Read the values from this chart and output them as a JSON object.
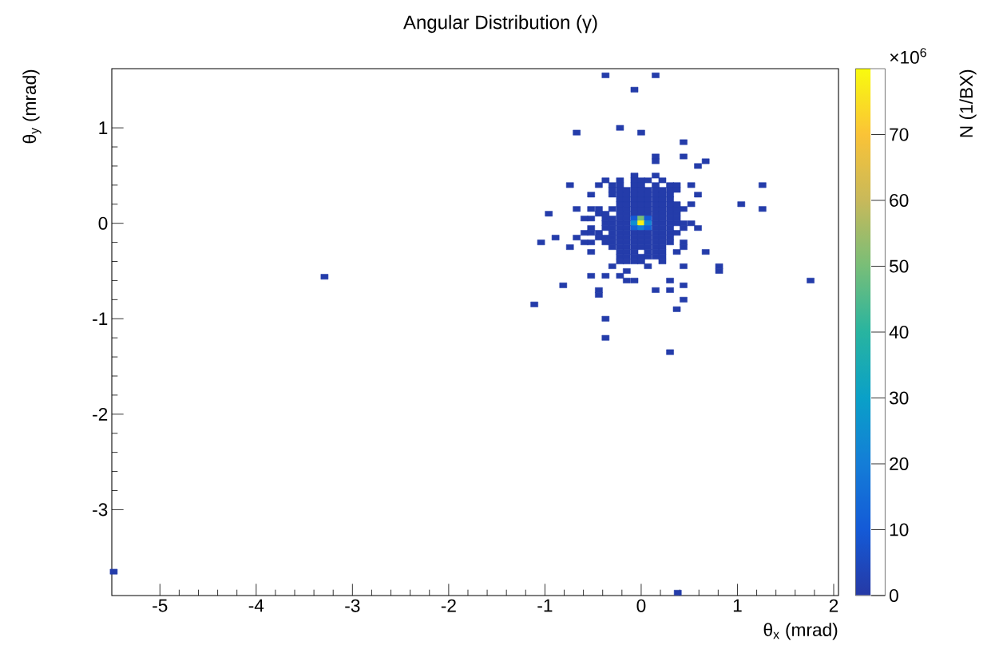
{
  "chart_data": {
    "type": "scatter",
    "title": "Angular Distribution (γ)",
    "xlabel": "θ$_{x}$ (mrad)",
    "ylabel": "θ$_{y}$ (mrad)",
    "clabel": "N (1/BX)",
    "annotations": [
      "×10$^{6}$"
    ],
    "marker": "square",
    "xlim": [
      -5.5,
      2.05
    ],
    "ylim": [
      -3.9,
      1.62
    ],
    "xticks": [
      -5,
      -4,
      -3,
      -2,
      -1,
      0,
      1,
      2
    ],
    "yticks": [
      -3,
      -2,
      -1,
      0,
      1
    ],
    "clim": [
      0,
      80
    ],
    "cticks": [
      0,
      10,
      20,
      30,
      40,
      50,
      60,
      70
    ],
    "x": [
      -0.37,
      0.15,
      -0.07,
      -0.22,
      -0.67,
      0,
      0.44,
      0.15,
      0.44,
      0.15,
      0.67,
      0.59,
      -0.07,
      0.15,
      -0.37,
      -0.22,
      -0.07,
      0,
      0.07,
      0.22,
      -0.74,
      -0.44,
      -0.3,
      -0.22,
      -0.07,
      0,
      0.15,
      0.3,
      0.37,
      0.52,
      1.26,
      -0.3,
      -0.22,
      -0.15,
      -0.07,
      0,
      0.07,
      0.15,
      0.22,
      0.3,
      0.37,
      -0.52,
      -0.3,
      -0.22,
      -0.15,
      -0.07,
      0,
      0.07,
      0.15,
      0.22,
      0.3,
      0.59,
      -0.22,
      -0.15,
      -0.07,
      0,
      0.07,
      0.15,
      0.22,
      0.3,
      -0.22,
      -0.15,
      -0.07,
      0,
      0.07,
      0.15,
      0.22,
      0.3,
      0.37,
      0.52,
      1.04,
      -0.67,
      -0.52,
      -0.44,
      -0.3,
      -0.22,
      -0.15,
      -0.07,
      0,
      0.07,
      0.15,
      0.22,
      0.3,
      0.37,
      0.44,
      1.26,
      -0.96,
      -0.44,
      -0.37,
      -0.22,
      -0.15,
      -0.07,
      0,
      0.07,
      0.15,
      0.22,
      0.3,
      0.37,
      -0.59,
      -0.52,
      -0.37,
      -0.3,
      -0.22,
      -0.15,
      -0.07,
      0,
      0.07,
      0.15,
      0.22,
      0.3,
      0.37,
      -0.37,
      -0.3,
      -0.22,
      -0.15,
      -0.07,
      0,
      0.07,
      0.15,
      0.22,
      0.3,
      0.37,
      0.44,
      0.52,
      -0.52,
      -0.37,
      -0.3,
      -0.22,
      -0.15,
      -0.07,
      0,
      0.07,
      0.15,
      0.22,
      0.3,
      0.44,
      0.59,
      -0.59,
      -0.52,
      -0.44,
      -0.3,
      -0.22,
      -0.15,
      -0.07,
      0,
      0.07,
      0.15,
      0.22,
      0.3,
      0.37,
      -0.89,
      -0.67,
      -0.44,
      -0.37,
      -0.3,
      -0.22,
      -0.15,
      -0.07,
      0,
      0.07,
      0.15,
      0.22,
      0.3,
      -1.04,
      -0.59,
      -0.52,
      -0.37,
      -0.3,
      -0.22,
      -0.15,
      -0.07,
      0,
      0.07,
      0.15,
      0.22,
      0.3,
      0.44,
      -0.74,
      -0.3,
      -0.22,
      -0.15,
      -0.07,
      0,
      0.07,
      0.15,
      0.22,
      0.44,
      -0.52,
      -0.22,
      -0.15,
      -0.07,
      0.07,
      0.15,
      0.22,
      0.37,
      0.67,
      -0.22,
      -0.15,
      -0.07,
      0,
      0.07,
      0.15,
      0.22,
      -0.22,
      -0.15,
      -0.07,
      0,
      0.22,
      -0.3,
      0.07,
      0.44,
      0.81,
      -0.15,
      0.81,
      -0.52,
      -0.37,
      -0.22,
      -0.15,
      -0.07,
      0.3,
      -0.81,
      0.44,
      -0.44,
      0.15,
      0.3,
      -0.44,
      0.44,
      -1.11,
      0.37,
      -0.37,
      -0.37,
      0.3,
      -3.29,
      1.76,
      -5.48,
      0.38
    ],
    "values": [
      1.55,
      1.55,
      1.4,
      1.0,
      0.95,
      0.95,
      0.85,
      0.7,
      0.7,
      0.65,
      0.65,
      0.6,
      0.5,
      0.5,
      0.45,
      0.45,
      0.45,
      0.45,
      0.45,
      0.45,
      0.4,
      0.4,
      0.4,
      0.4,
      0.4,
      0.4,
      0.4,
      0.4,
      0.4,
      0.4,
      0.4,
      0.35,
      0.35,
      0.35,
      0.35,
      0.35,
      0.35,
      0.35,
      0.35,
      0.35,
      0.35,
      0.3,
      0.3,
      0.3,
      0.3,
      0.3,
      0.3,
      0.3,
      0.3,
      0.3,
      0.3,
      0.3,
      0.25,
      0.25,
      0.25,
      0.25,
      0.25,
      0.25,
      0.25,
      0.25,
      0.2,
      0.2,
      0.2,
      0.2,
      0.2,
      0.2,
      0.2,
      0.2,
      0.2,
      0.2,
      0.2,
      0.15,
      0.15,
      0.15,
      0.15,
      0.15,
      0.15,
      0.15,
      0.15,
      0.15,
      0.15,
      0.15,
      0.15,
      0.15,
      0.15,
      0.15,
      0.1,
      0.1,
      0.1,
      0.1,
      0.1,
      0.1,
      0.1,
      0.1,
      0.1,
      0.1,
      0.1,
      0.1,
      0.05,
      0.05,
      0.05,
      0.05,
      0.05,
      0.05,
      0.05,
      0.05,
      0.05,
      0.05,
      0.05,
      0.05,
      0.05,
      0,
      0,
      0,
      0,
      0,
      0,
      0,
      0,
      0,
      0,
      0,
      0,
      0,
      -0.05,
      -0.05,
      -0.05,
      -0.05,
      -0.05,
      -0.05,
      -0.05,
      -0.05,
      -0.05,
      -0.05,
      -0.05,
      -0.05,
      -0.05,
      -0.1,
      -0.1,
      -0.1,
      -0.1,
      -0.1,
      -0.1,
      -0.1,
      -0.1,
      -0.1,
      -0.1,
      -0.1,
      -0.1,
      -0.1,
      -0.15,
      -0.15,
      -0.15,
      -0.15,
      -0.15,
      -0.15,
      -0.15,
      -0.15,
      -0.15,
      -0.15,
      -0.15,
      -0.15,
      -0.15,
      -0.2,
      -0.2,
      -0.2,
      -0.2,
      -0.2,
      -0.2,
      -0.2,
      -0.2,
      -0.2,
      -0.2,
      -0.2,
      -0.2,
      -0.2,
      -0.2,
      -0.25,
      -0.25,
      -0.25,
      -0.25,
      -0.25,
      -0.25,
      -0.25,
      -0.25,
      -0.25,
      -0.25,
      -0.3,
      -0.3,
      -0.3,
      -0.3,
      -0.3,
      -0.3,
      -0.3,
      -0.3,
      -0.3,
      -0.35,
      -0.35,
      -0.35,
      -0.35,
      -0.35,
      -0.35,
      -0.35,
      -0.4,
      -0.4,
      -0.4,
      -0.4,
      -0.4,
      -0.45,
      -0.45,
      -0.45,
      -0.45,
      -0.5,
      -0.5,
      -0.55,
      -0.55,
      -0.55,
      -0.6,
      -0.6,
      -0.6,
      -0.65,
      -0.65,
      -0.7,
      -0.7,
      -0.7,
      -0.75,
      -0.8,
      -0.85,
      -0.9,
      -1.0,
      -1.2,
      -1.35,
      -0.56,
      -0.6,
      -3.65,
      -3.87
    ],
    "cvalues": [
      1,
      1,
      1,
      1,
      1,
      1,
      1,
      1,
      1,
      1,
      1,
      1,
      1,
      1,
      1,
      1,
      1,
      1,
      1,
      1,
      1,
      1,
      1,
      1,
      1,
      1,
      1,
      1,
      1,
      1,
      1,
      1,
      1,
      1,
      1,
      1,
      1,
      1,
      1,
      1,
      1,
      1,
      1,
      1,
      1,
      1,
      1,
      1,
      1,
      1,
      1,
      1,
      1,
      1,
      1,
      1,
      1,
      1,
      1,
      1,
      1,
      1,
      1,
      1,
      1,
      1,
      1,
      1,
      1,
      1,
      1,
      1,
      1,
      1,
      1,
      1,
      1,
      1,
      1,
      1,
      1,
      1,
      1,
      1,
      1,
      1,
      1,
      1,
      1,
      1,
      1,
      1,
      1,
      1,
      1,
      1,
      1,
      1,
      1,
      1,
      1,
      1,
      1,
      1,
      10,
      50,
      10,
      1,
      1,
      1,
      1,
      1,
      1,
      1,
      1,
      25,
      78,
      22,
      1,
      1,
      1,
      1,
      1,
      1,
      1,
      1,
      1,
      1,
      1,
      12,
      20,
      12,
      1,
      1,
      1,
      1,
      1,
      1,
      1,
      1,
      1,
      1,
      1,
      1,
      1,
      1,
      1,
      1,
      1,
      1,
      1,
      1,
      1,
      1,
      1,
      1,
      1,
      1,
      1,
      1,
      1,
      1,
      1,
      1,
      1,
      1,
      1,
      1,
      1,
      1,
      1,
      1,
      1,
      1,
      1,
      1,
      1,
      1,
      1,
      1,
      1,
      1,
      1,
      1,
      1,
      1,
      1,
      1,
      1,
      1,
      1,
      1,
      1,
      1,
      1,
      1,
      1,
      1,
      1,
      1,
      1,
      1,
      1,
      1,
      1,
      1,
      1,
      1,
      1,
      1,
      1,
      1,
      1,
      1,
      1,
      1,
      1,
      1,
      1,
      1,
      1,
      1,
      1,
      1,
      1,
      1,
      1,
      1,
      1,
      1,
      1,
      1,
      1,
      1,
      1,
      1
    ]
  }
}
